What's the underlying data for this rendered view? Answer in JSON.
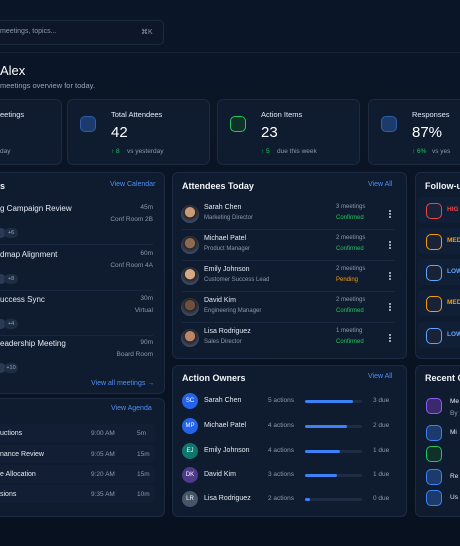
{
  "search": {
    "placeholder": "meetings, topics...",
    "shortcut": "⌘K"
  },
  "greeting": {
    "title": "Alex",
    "subtitle": "meetings overview for today."
  },
  "stats": [
    {
      "label": "eetings",
      "note": "day"
    },
    {
      "label": "Total Attendees",
      "value": "42",
      "delta": "↑ 8",
      "note": "vs yesterday"
    },
    {
      "label": "Action Items",
      "value": "23",
      "delta": "↑ 5",
      "note": "due this week"
    },
    {
      "label": "Responses",
      "value": "87%",
      "delta": "↑ 6%",
      "note": "vs yes"
    }
  ],
  "meetings": {
    "title": "s",
    "link": "View Calendar",
    "items": [
      {
        "title": "g Campaign Review",
        "duration": "45m",
        "location": "Conf Room 2B",
        "extra": "+6"
      },
      {
        "title": "dmap Alignment",
        "duration": "60m",
        "location": "Conf Room 4A",
        "extra": "+8"
      },
      {
        "title": "uccess Sync",
        "duration": "30m",
        "location": "Virtual",
        "extra": "+4"
      },
      {
        "title": "eadership Meeting",
        "duration": "90m",
        "location": "Board Room",
        "extra": "+10"
      }
    ],
    "footer": "View all meetings →"
  },
  "agenda": {
    "link": "View Agenda",
    "items": [
      {
        "title": "uctions",
        "time": "9:00 AM",
        "duration": "5m"
      },
      {
        "title": "nance Review",
        "time": "9:05 AM",
        "duration": "15m"
      },
      {
        "title": "e Allocation",
        "time": "9:20 AM",
        "duration": "15m"
      },
      {
        "title": "sions",
        "time": "9:35 AM",
        "duration": "10m"
      }
    ]
  },
  "attendees": {
    "title": "Attendees Today",
    "link": "View All",
    "items": [
      {
        "name": "Sarah Chen",
        "role": "Marketing Director",
        "meetings": "3 meetings",
        "status": "Confirmed"
      },
      {
        "name": "Michael Patel",
        "role": "Product Manager",
        "meetings": "2 meetings",
        "status": "Confirmed"
      },
      {
        "name": "Emily Johnson",
        "role": "Customer Success Lead",
        "meetings": "2 meetings",
        "status": "Pending"
      },
      {
        "name": "David Kim",
        "role": "Engineering Manager",
        "meetings": "2 meetings",
        "status": "Confirmed"
      },
      {
        "name": "Lisa Rodriguez",
        "role": "Sales Director",
        "meetings": "1 meeting",
        "status": "Confirmed"
      }
    ]
  },
  "action_owners": {
    "title": "Action Owners",
    "link": "View All",
    "items": [
      {
        "initials": "SC",
        "name": "Sarah Chen",
        "actions": "5 actions",
        "due": "3 due"
      },
      {
        "initials": "MP",
        "name": "Michael Patel",
        "actions": "4 actions",
        "due": "2 due"
      },
      {
        "initials": "EJ",
        "name": "Emily Johnson",
        "actions": "4 actions",
        "due": "1 due"
      },
      {
        "initials": "DK",
        "name": "David Kim",
        "actions": "3 actions",
        "due": "1 due"
      },
      {
        "initials": "LR",
        "name": "Lisa Rodriguez",
        "actions": "2 actions",
        "due": "0 due"
      }
    ]
  },
  "followups": {
    "title": "Follow-u",
    "items": [
      "HIG",
      "MED",
      "LOW",
      "MED",
      "LOW"
    ]
  },
  "recent": {
    "title": "Recent C",
    "items": [
      "Me",
      "By",
      "Mi",
      "Re",
      "Us"
    ]
  }
}
